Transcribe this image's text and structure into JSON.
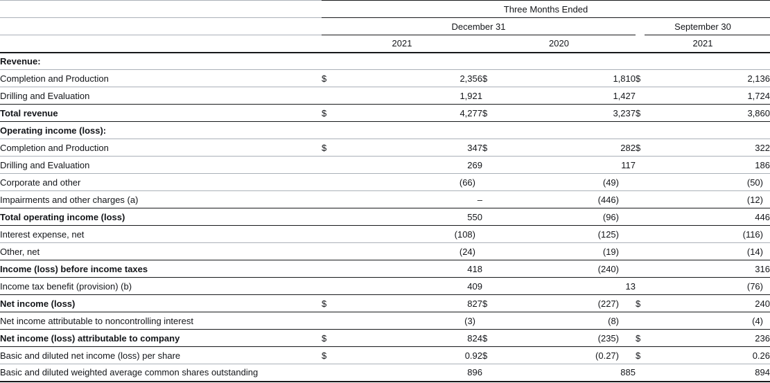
{
  "table": {
    "period_header": "Three Months Ended",
    "date_headers": [
      "December 31",
      "September 30"
    ],
    "year_headers": [
      "2021",
      "2020",
      "2021"
    ],
    "currency_symbol": "$",
    "rows": [
      {
        "label": "Revenue:",
        "style": "section",
        "rule": "gray",
        "d1": "",
        "v1": "",
        "d2": "",
        "v2": "",
        "d3": "",
        "v3": ""
      },
      {
        "label": "Completion and Production",
        "style": "plain",
        "rule": "gray",
        "d1": "$",
        "v1": "2,356",
        "d2": "$",
        "v2": "1,810",
        "d3": "$",
        "v3": "2,136"
      },
      {
        "label": "Drilling and Evaluation",
        "style": "plain",
        "rule": "black",
        "d1": "",
        "v1": "1,921",
        "d2": "",
        "v2": "1,427",
        "d3": "",
        "v3": "1,724"
      },
      {
        "label": "Total revenue",
        "style": "total",
        "rule": "black",
        "d1": "$",
        "v1": "4,277",
        "d2": "$",
        "v2": "3,237",
        "d3": "$",
        "v3": "3,860"
      },
      {
        "label": "Operating income (loss):",
        "style": "section",
        "rule": "gray",
        "d1": "",
        "v1": "",
        "d2": "",
        "v2": "",
        "d3": "",
        "v3": ""
      },
      {
        "label": "Completion and Production",
        "style": "plain",
        "rule": "gray",
        "d1": "$",
        "v1": "347",
        "d2": "$",
        "v2": "282",
        "d3": "$",
        "v3": "322"
      },
      {
        "label": "Drilling and Evaluation",
        "style": "plain",
        "rule": "gray",
        "d1": "",
        "v1": "269",
        "d2": "",
        "v2": "117",
        "d3": "",
        "v3": "186"
      },
      {
        "label": "Corporate and other",
        "style": "plain",
        "rule": "gray",
        "d1": "",
        "v1": "(66)",
        "d2": "",
        "v2": "(49)",
        "d3": "",
        "v3": "(50)"
      },
      {
        "label": "Impairments and other charges (a)",
        "style": "plain",
        "rule": "black",
        "d1": "",
        "v1": "–",
        "d2": "",
        "v2": "(446)",
        "d3": "",
        "v3": "(12)"
      },
      {
        "label": "Total operating income (loss)",
        "style": "total",
        "rule": "black",
        "d1": "",
        "v1": "550",
        "d2": "",
        "v2": "(96)",
        "d3": "",
        "v3": "446"
      },
      {
        "label": "Interest expense, net",
        "style": "plain",
        "rule": "gray",
        "d1": "",
        "v1": "(108)",
        "d2": "",
        "v2": "(125)",
        "d3": "",
        "v3": "(116)"
      },
      {
        "label": "Other, net",
        "style": "plain",
        "rule": "black",
        "d1": "",
        "v1": "(24)",
        "d2": "",
        "v2": "(19)",
        "d3": "",
        "v3": "(14)"
      },
      {
        "label": "Income (loss) before income taxes",
        "style": "total",
        "rule": "black",
        "d1": "",
        "v1": "418",
        "d2": "",
        "v2": "(240)",
        "d3": "",
        "v3": "316"
      },
      {
        "label": "Income tax benefit (provision) (b)",
        "style": "plain",
        "rule": "black",
        "d1": "",
        "v1": "409",
        "d2": "",
        "v2": "13",
        "d3": "",
        "v3": "(76)"
      },
      {
        "label": "Net income (loss)",
        "style": "total",
        "rule": "black",
        "d1": "$",
        "v1": "827",
        "d2": "$",
        "v2": "(227)",
        "d3": "$",
        "v3": "240"
      },
      {
        "label": "Net income attributable to noncontrolling interest",
        "style": "plain",
        "rule": "black",
        "d1": "",
        "v1": "(3)",
        "d2": "",
        "v2": "(8)",
        "d3": "",
        "v3": "(4)"
      },
      {
        "label": "Net income (loss) attributable to company",
        "style": "total",
        "rule": "black",
        "d1": "$",
        "v1": "824",
        "d2": "$",
        "v2": "(235)",
        "d3": "$",
        "v3": "236"
      },
      {
        "label": "Basic and diluted net income (loss) per share",
        "style": "plain",
        "rule": "gray",
        "d1": "$",
        "v1": "0.92",
        "d2": "$",
        "v2": "(0.27)",
        "d3": "$",
        "v3": "0.26"
      },
      {
        "label": "Basic and diluted weighted average common shares outstanding",
        "style": "plain",
        "rule": "end",
        "d1": "",
        "v1": "896",
        "d2": "",
        "v2": "885",
        "d3": "",
        "v3": "894"
      }
    ]
  }
}
